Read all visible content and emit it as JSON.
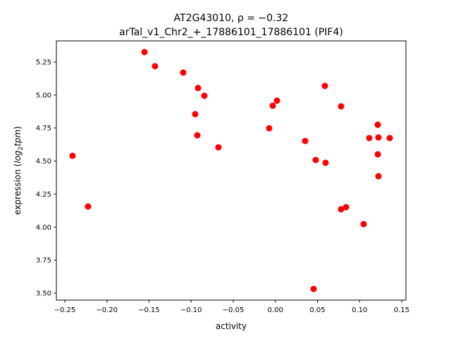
{
  "chart_data": {
    "type": "scatter",
    "title": "AT2G43010, ρ = −0.32",
    "subtitle": "arTal_v1_Chr2_+_17886101_17886101 (PIF4)",
    "xlabel": "activity",
    "ylabel_prefix": "expression (",
    "ylabel_italic": "log",
    "ylabel_sub": "2",
    "ylabel_italic2": "tpm",
    "ylabel_suffix": ")",
    "xlim": [
      -0.26,
      0.155
    ],
    "ylim": [
      3.447,
      5.41
    ],
    "xticks": [
      -0.25,
      -0.2,
      -0.15,
      -0.1,
      -0.05,
      0.0,
      0.05,
      0.1,
      0.15
    ],
    "xtick_labels": [
      "−0.25",
      "−0.20",
      "−0.15",
      "−0.10",
      "−0.05",
      "0.00",
      "0.05",
      "0.10",
      "0.15"
    ],
    "yticks": [
      3.5,
      3.75,
      4.0,
      4.25,
      4.5,
      4.75,
      5.0,
      5.25
    ],
    "ytick_labels": [
      "3.50",
      "3.75",
      "4.00",
      "4.25",
      "4.50",
      "4.75",
      "5.00",
      "5.25"
    ],
    "grid": false,
    "marker_color": "#ff0000",
    "points": [
      [
        -0.1554,
        5.325
      ],
      [
        -0.1429,
        5.218
      ],
      [
        -0.1094,
        5.17
      ],
      [
        -0.0918,
        5.053
      ],
      [
        -0.0843,
        4.994
      ],
      [
        -0.0952,
        4.855
      ],
      [
        -0.0927,
        4.695
      ],
      [
        -0.0676,
        4.604
      ],
      [
        -0.2408,
        4.54
      ],
      [
        -0.2224,
        4.156
      ],
      [
        -0.0073,
        4.748
      ],
      [
        -0.0031,
        4.919
      ],
      [
        0.0019,
        4.957
      ],
      [
        0.0354,
        4.652
      ],
      [
        0.0479,
        4.508
      ],
      [
        0.0596,
        4.487
      ],
      [
        0.0588,
        5.069
      ],
      [
        0.078,
        4.914
      ],
      [
        0.078,
        4.135
      ],
      [
        0.0839,
        4.151
      ],
      [
        0.1048,
        4.023
      ],
      [
        0.0454,
        3.532
      ],
      [
        0.1115,
        4.674
      ],
      [
        0.1216,
        4.775
      ],
      [
        0.1224,
        4.679
      ],
      [
        0.1216,
        4.551
      ],
      [
        0.1224,
        4.385
      ],
      [
        0.1358,
        4.674
      ]
    ]
  }
}
